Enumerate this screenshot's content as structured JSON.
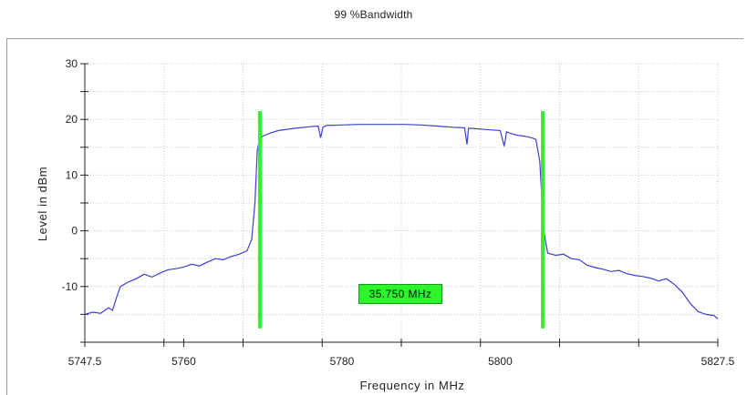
{
  "chart_data": {
    "type": "line",
    "title": "99 %Bandwidth",
    "xlabel": "Frequency in MHz",
    "ylabel": "Level in dBm",
    "xlim": [
      5747.5,
      5827.5
    ],
    "ylim": [
      -20,
      30
    ],
    "x_ticks": [
      "5747.5",
      "5760",
      "5780",
      "5800",
      "5827.5"
    ],
    "y_ticks": [
      "30",
      "20",
      "10",
      "0",
      "-10"
    ],
    "grid": true,
    "colors": {
      "trace": "#3a3fd6",
      "markers": "#33ee33",
      "grid": "#c8c8c8"
    },
    "series": [
      {
        "x": [
          5747.5,
          5748.5,
          5749.5,
          5750.5,
          5751.0,
          5751.5,
          5752.0,
          5753.0,
          5754.0,
          5755.0,
          5756.0,
          5757.0,
          5758.0,
          5759.0,
          5760.0,
          5761.0,
          5762.0,
          5763.0,
          5764.0,
          5765.0,
          5766.0,
          5767.0,
          5768.0,
          5768.6,
          5769.0,
          5769.3,
          5769.6,
          5770.0,
          5771.0,
          5772.0,
          5774.0,
          5776.0,
          5777.0,
          5777.3,
          5777.6,
          5778.0,
          5780.0,
          5782.0,
          5784.0,
          5786.0,
          5788.0,
          5790.0,
          5792.0,
          5794.0,
          5795.5,
          5795.8,
          5796.0,
          5796.4,
          5798.0,
          5800.0,
          5800.5,
          5800.8,
          5801.1,
          5802.0,
          5803.0,
          5804.0,
          5804.5,
          5805.0,
          5805.5,
          5806.0,
          5807.0,
          5808.0,
          5809.0,
          5810.0,
          5811.0,
          5812.0,
          5813.0,
          5814.0,
          5815.0,
          5816.0,
          5817.0,
          5818.0,
          5819.0,
          5820.0,
          5821.0,
          5822.0,
          5823.0,
          5824.0,
          5825.0,
          5826.0,
          5827.0,
          5827.5
        ],
        "y": [
          -15.0,
          -14.6,
          -14.8,
          -13.8,
          -14.3,
          -12.0,
          -10.0,
          -9.2,
          -8.6,
          -7.8,
          -8.3,
          -7.6,
          -7.0,
          -6.8,
          -6.5,
          -6.0,
          -6.3,
          -5.6,
          -5.0,
          -5.2,
          -4.6,
          -4.2,
          -3.6,
          -1.5,
          5.0,
          14.5,
          16.5,
          17.0,
          17.6,
          18.0,
          18.4,
          18.7,
          18.8,
          16.7,
          18.6,
          18.9,
          19.0,
          19.1,
          19.1,
          19.1,
          19.1,
          19.0,
          18.8,
          18.6,
          18.5,
          15.5,
          18.4,
          18.4,
          18.2,
          18.0,
          15.2,
          17.8,
          17.6,
          17.2,
          17.0,
          16.7,
          16.4,
          12.5,
          0.0,
          -4.0,
          -4.4,
          -4.2,
          -5.0,
          -5.2,
          -6.2,
          -6.6,
          -6.9,
          -7.3,
          -7.1,
          -7.7,
          -8.0,
          -8.2,
          -8.5,
          -9.0,
          -8.6,
          -9.6,
          -11.0,
          -13.0,
          -14.5,
          -15.0,
          -15.2,
          -15.8
        ]
      }
    ],
    "markers": [
      {
        "x": 5769.625,
        "y_top": 21.5,
        "y_bottom": -17.5
      },
      {
        "x": 5805.375,
        "y_top": 21.5,
        "y_bottom": -17.5
      }
    ],
    "annotation": "35.750 MHz"
  }
}
